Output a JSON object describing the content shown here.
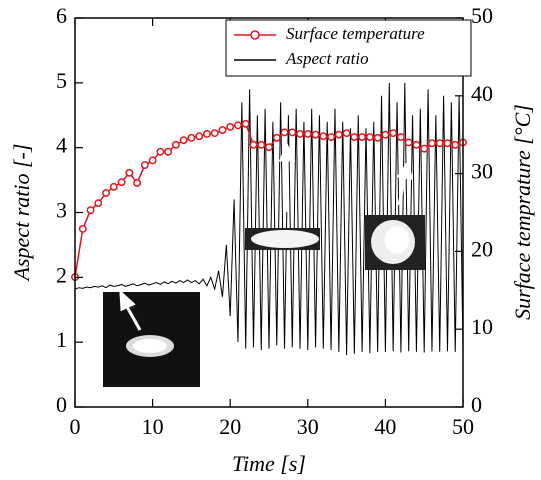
{
  "chart_data": {
    "type": "line",
    "xlabel": "Time [s]",
    "ylabel": "Aspect ratio [-]",
    "y2label": "Surface temprature [°C]",
    "xlim": [
      0,
      50
    ],
    "xticks": [
      0,
      10,
      20,
      30,
      40,
      50
    ],
    "ylim": [
      0,
      6
    ],
    "yticks": [
      0,
      1,
      2,
      3,
      4,
      5,
      6
    ],
    "y2lim": [
      0,
      50
    ],
    "y2ticks": [
      0,
      10,
      20,
      30,
      40,
      50
    ],
    "legend": "upper right",
    "series": [
      {
        "name": "Surface temperature",
        "color": "#e8141c",
        "axis": "y2",
        "marker": "circle",
        "x": [
          0,
          1,
          2,
          3,
          4,
          5,
          6,
          7,
          8,
          9,
          10,
          11,
          12,
          13,
          14,
          15,
          16,
          17,
          18,
          19,
          20,
          21,
          22,
          23,
          24,
          25,
          26,
          27,
          28,
          29,
          30,
          31,
          32,
          33,
          34,
          35,
          36,
          37,
          38,
          39,
          40,
          41,
          42,
          43,
          44,
          45,
          46,
          47,
          48,
          49,
          50
        ],
        "values": [
          16.7,
          22.9,
          25.3,
          26.2,
          27.5,
          28.3,
          28.9,
          30.1,
          28.8,
          31.1,
          31.7,
          32.8,
          32.8,
          33.7,
          34.3,
          34.6,
          34.8,
          35.1,
          35.2,
          35.6,
          36.0,
          36.2,
          36.4,
          33.7,
          33.7,
          33.4,
          34.6,
          35.3,
          35.3,
          35.1,
          35.1,
          35.0,
          34.8,
          34.7,
          35.0,
          35.2,
          34.7,
          34.7,
          34.7,
          34.6,
          35.0,
          35.2,
          34.7,
          34.0,
          33.7,
          33.2,
          33.9,
          33.9,
          33.9,
          33.7,
          34.0
        ]
      },
      {
        "name": "Aspect ratio",
        "color": "#000000",
        "x": [
          0,
          0.5,
          1,
          1.5,
          2,
          2.5,
          3,
          3.5,
          4,
          4.5,
          5,
          5.5,
          6,
          6.5,
          7,
          7.5,
          8,
          8.5,
          9,
          9.5,
          10,
          10.5,
          11,
          11.5,
          12,
          12.5,
          13,
          13.5,
          14,
          14.5,
          15,
          15.5,
          16,
          16.5,
          17,
          17.5,
          18,
          18.5,
          19,
          19.5,
          20,
          20.5,
          21,
          21.5,
          22,
          22.5,
          23,
          23.5,
          24,
          24.5,
          25,
          25.5,
          26,
          26.5,
          27,
          27.5,
          28,
          28.5,
          29,
          29.5,
          30,
          30.5,
          31,
          31.5,
          32,
          32.5,
          33,
          33.5,
          34,
          34.5,
          35,
          35.5,
          36,
          36.5,
          37,
          37.5,
          38,
          38.5,
          39,
          39.5,
          40,
          40.5,
          41,
          41.5,
          42,
          42.5,
          43,
          43.5,
          44,
          44.5,
          45,
          45.5,
          46,
          46.5,
          47,
          47.5,
          48,
          48.5,
          49,
          49.5,
          50
        ],
        "values": [
          1.82,
          1.84,
          1.83,
          1.85,
          1.84,
          1.86,
          1.85,
          1.87,
          1.84,
          1.88,
          1.86,
          1.87,
          1.89,
          1.86,
          1.88,
          1.9,
          1.87,
          1.89,
          1.91,
          1.88,
          1.9,
          1.92,
          1.89,
          1.93,
          1.9,
          1.94,
          1.91,
          1.95,
          1.92,
          1.96,
          1.92,
          1.95,
          1.9,
          1.97,
          1.87,
          2.0,
          1.82,
          2.1,
          1.7,
          2.5,
          1.4,
          3.2,
          1.0,
          4.7,
          0.9,
          4.9,
          0.92,
          4.5,
          0.88,
          4.6,
          0.9,
          4.4,
          0.95,
          4.7,
          0.9,
          4.5,
          0.92,
          4.6,
          0.9,
          4.4,
          0.88,
          4.6,
          0.92,
          4.5,
          0.9,
          4.4,
          0.88,
          4.6,
          0.85,
          4.4,
          0.8,
          4.3,
          0.82,
          4.5,
          0.85,
          4.3,
          0.83,
          4.4,
          0.85,
          4.8,
          0.85,
          5.0,
          0.86,
          4.7,
          0.84,
          5.0,
          0.86,
          4.5,
          0.85,
          4.6,
          0.84,
          4.9,
          0.86,
          4.5,
          0.85,
          4.8,
          0.86,
          4.7,
          0.85,
          4.8,
          0.88
        ]
      }
    ]
  }
}
